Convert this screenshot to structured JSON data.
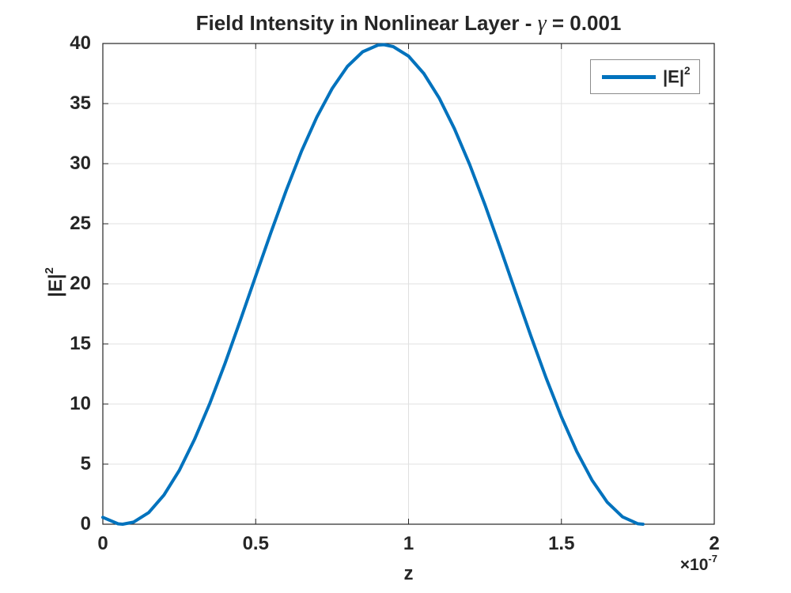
{
  "figure": {
    "title": {
      "prefix": "Field Intensity in Nonlinear Layer - ",
      "gamma": "γ",
      "suffix": " = 0.001"
    },
    "xlabel": "z",
    "ylabel": {
      "base": "|E|",
      "exponent": "2"
    },
    "x_multiplier": {
      "base": "×10",
      "exponent": "-7"
    },
    "legend": {
      "label_base": "|E|",
      "label_exponent": "2"
    },
    "colors": {
      "line": "#0072bd",
      "grid": "#e0e0e0",
      "axis": "#262626",
      "text": "#262626",
      "legend_border": "#8c8c8c",
      "background": "#ffffff"
    }
  },
  "chart_data": {
    "type": "line",
    "title": "Field Intensity in Nonlinear Layer - γ = 0.001",
    "xlabel": "z",
    "ylabel": "|E|^2",
    "x_unit_scale": "1e-7",
    "xlim": [
      0,
      2
    ],
    "ylim": [
      0,
      40
    ],
    "xticks": [
      0,
      0.5,
      1,
      1.5,
      2
    ],
    "xtick_labels": [
      "0",
      "0.5",
      "1",
      "1.5",
      "2"
    ],
    "yticks": [
      0,
      5,
      10,
      15,
      20,
      25,
      30,
      35,
      40
    ],
    "ytick_labels": [
      "0",
      "5",
      "10",
      "15",
      "20",
      "25",
      "30",
      "35",
      "40"
    ],
    "grid": true,
    "legend": {
      "entries": [
        "|E|^2"
      ],
      "position": "northeast"
    },
    "series": [
      {
        "name": "|E|^2",
        "color": "#0072bd",
        "x": [
          0.0,
          0.05,
          0.065,
          0.1,
          0.15,
          0.2,
          0.25,
          0.3,
          0.35,
          0.4,
          0.45,
          0.5,
          0.55,
          0.6,
          0.65,
          0.7,
          0.75,
          0.8,
          0.85,
          0.9,
          0.92,
          0.95,
          1.0,
          1.05,
          1.1,
          1.15,
          1.2,
          1.25,
          1.3,
          1.35,
          1.4,
          1.45,
          1.5,
          1.55,
          1.6,
          1.65,
          1.7,
          1.75,
          1.767
        ],
        "y": [
          0.57,
          0.03,
          0.0,
          0.17,
          0.97,
          2.43,
          4.47,
          7.05,
          10.06,
          13.4,
          16.98,
          20.66,
          24.29,
          27.78,
          31.04,
          33.87,
          36.25,
          38.09,
          39.31,
          39.87,
          39.9,
          39.74,
          38.95,
          37.5,
          35.47,
          32.91,
          29.92,
          26.58,
          22.98,
          19.31,
          15.67,
          12.17,
          8.93,
          6.06,
          3.67,
          1.83,
          0.61,
          0.04,
          0.0
        ]
      }
    ]
  }
}
